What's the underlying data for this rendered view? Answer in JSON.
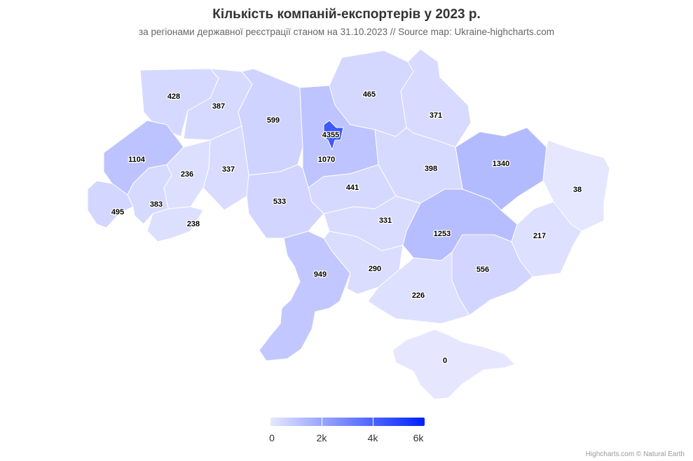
{
  "title": "Кількість компаній-експортерів у 2023 р.",
  "subtitle": "за регіонами державної реєстрації станом на 31.10.2023 // Source map: Ukraine-highcharts.com",
  "color_axis": {
    "min": 0,
    "max": 6000,
    "min_color": "#e6e7ff",
    "max_color": "#0022ff",
    "ticks": [
      "0",
      "2k",
      "4k",
      "6k"
    ]
  },
  "credits": "Highcharts.com © Natural Earth",
  "regions": [
    {
      "name": "Volyn",
      "value": 428
    },
    {
      "name": "Rivne",
      "value": 387
    },
    {
      "name": "Zhytomyr",
      "value": 599
    },
    {
      "name": "Kyiv city",
      "value": 4355
    },
    {
      "name": "Kyiv oblast",
      "value": 1070
    },
    {
      "name": "Chernihiv",
      "value": 465
    },
    {
      "name": "Sumy",
      "value": 371
    },
    {
      "name": "Kharkiv",
      "value": 1340
    },
    {
      "name": "Luhansk",
      "value": 38
    },
    {
      "name": "Lviv",
      "value": 1104
    },
    {
      "name": "Ternopil",
      "value": 236
    },
    {
      "name": "Khmelnytskyi",
      "value": 337
    },
    {
      "name": "Poltava",
      "value": 398
    },
    {
      "name": "Cherkasy",
      "value": 441
    },
    {
      "name": "Vinnytsia",
      "value": 533
    },
    {
      "name": "Zakarpattia",
      "value": 495
    },
    {
      "name": "Ivano-Frankivsk",
      "value": 383
    },
    {
      "name": "Chernivtsi",
      "value": 238
    },
    {
      "name": "Kirovohrad",
      "value": 331
    },
    {
      "name": "Dnipropetrovsk",
      "value": 1253
    },
    {
      "name": "Donetsk",
      "value": 217
    },
    {
      "name": "Odesa",
      "value": 949
    },
    {
      "name": "Mykolaiv",
      "value": 290
    },
    {
      "name": "Zaporizhzhia",
      "value": 556
    },
    {
      "name": "Kherson",
      "value": 226
    },
    {
      "name": "Crimea",
      "value": 0
    }
  ]
}
